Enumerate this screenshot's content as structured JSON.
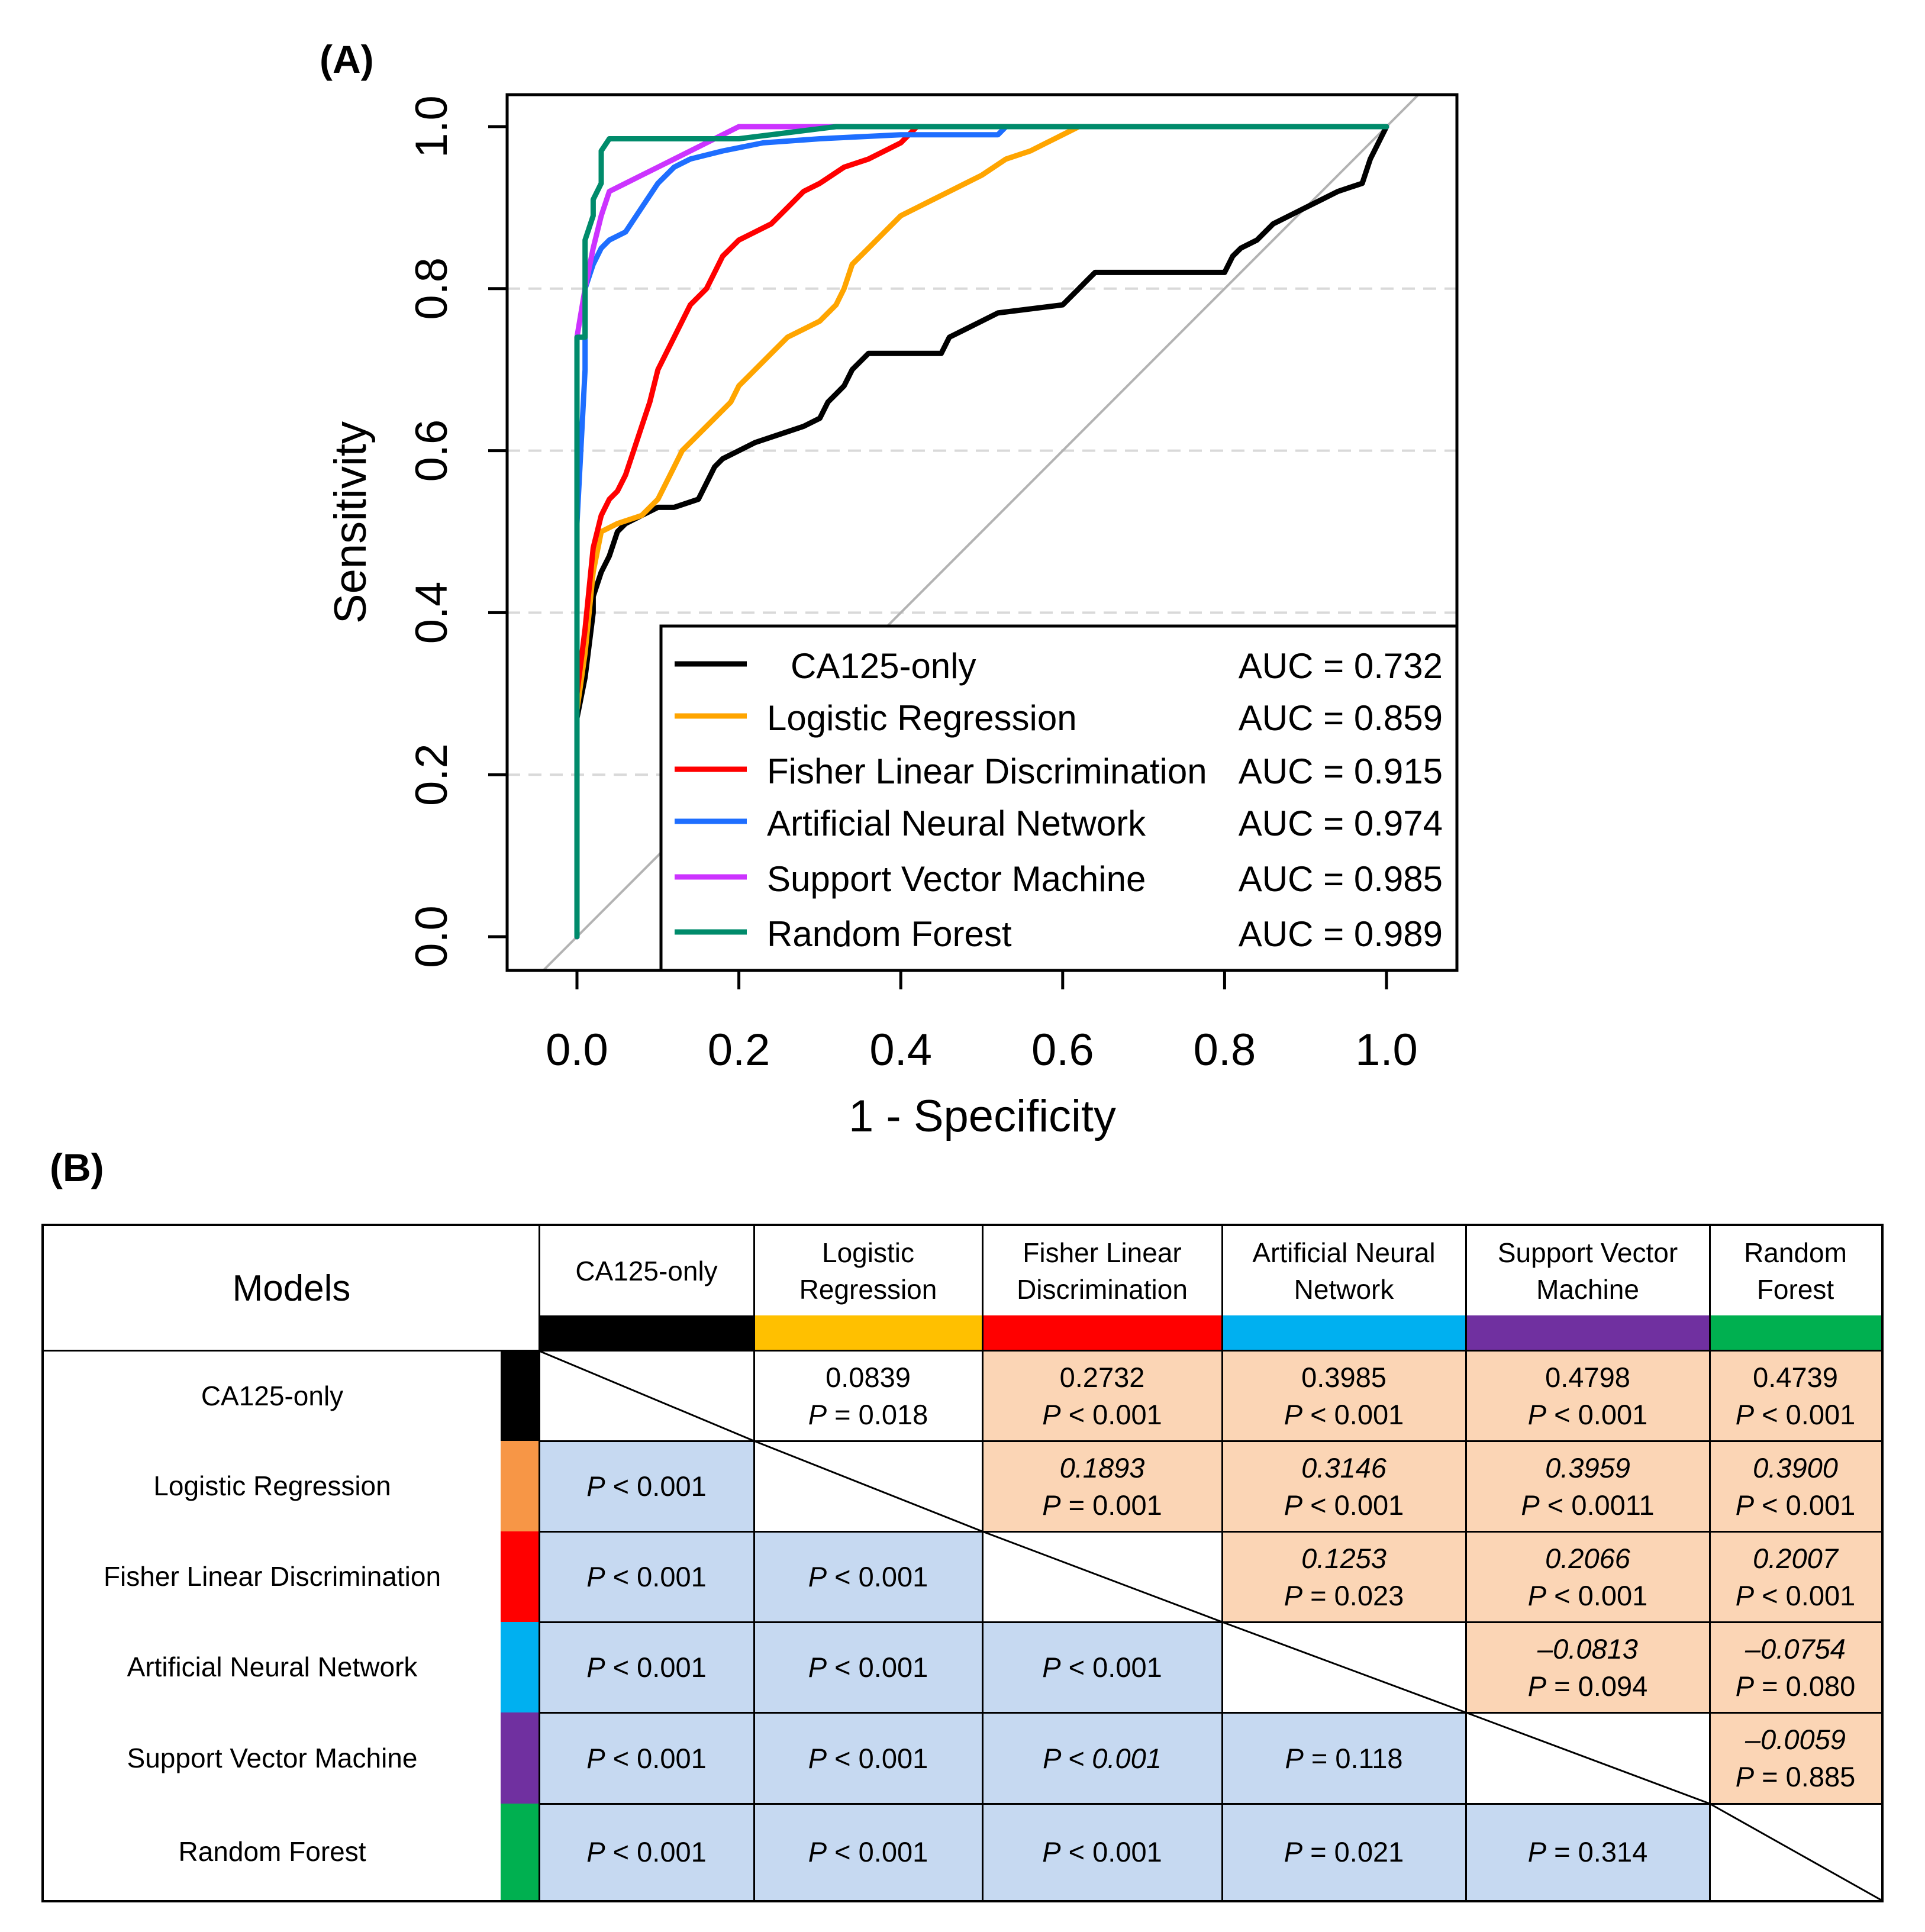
{
  "panel_a_label": "(A)",
  "panel_b_label": "(B)",
  "chart_data": {
    "type": "line",
    "title": "",
    "xlabel": "1 - Specificity",
    "ylabel": "Sensitivity",
    "xlim": [
      0,
      1
    ],
    "ylim": [
      0,
      1
    ],
    "xticks": [
      "0.0",
      "0.2",
      "0.4",
      "0.6",
      "0.8",
      "1.0"
    ],
    "yticks": [
      "0.0",
      "0.2",
      "0.4",
      "0.6",
      "0.8",
      "1.0"
    ],
    "grid": "horizontal dashed",
    "legend_position": "bottom-right",
    "reference_line": "diagonal",
    "series": [
      {
        "name": "CA125-only",
        "auc_label": "AUC = 0.732",
        "color": "#000000",
        "x": [
          0.0,
          0.0,
          0.01,
          0.02,
          0.02,
          0.03,
          0.04,
          0.05,
          0.06,
          0.08,
          0.1,
          0.12,
          0.15,
          0.16,
          0.17,
          0.18,
          0.2,
          0.22,
          0.25,
          0.28,
          0.3,
          0.31,
          0.32,
          0.33,
          0.34,
          0.35,
          0.36,
          0.38,
          0.45,
          0.46,
          0.48,
          0.5,
          0.52,
          0.6,
          0.62,
          0.63,
          0.64,
          0.8,
          0.81,
          0.82,
          0.84,
          0.86,
          0.88,
          0.9,
          0.92,
          0.94,
          0.97,
          0.98,
          0.99,
          1.0
        ],
        "y": [
          0.0,
          0.27,
          0.32,
          0.4,
          0.42,
          0.45,
          0.47,
          0.5,
          0.51,
          0.52,
          0.53,
          0.53,
          0.54,
          0.56,
          0.58,
          0.59,
          0.6,
          0.61,
          0.62,
          0.63,
          0.64,
          0.66,
          0.67,
          0.68,
          0.7,
          0.71,
          0.72,
          0.72,
          0.72,
          0.74,
          0.75,
          0.76,
          0.77,
          0.78,
          0.8,
          0.81,
          0.82,
          0.82,
          0.84,
          0.85,
          0.86,
          0.88,
          0.89,
          0.9,
          0.91,
          0.92,
          0.93,
          0.96,
          0.98,
          1.0
        ]
      },
      {
        "name": "Logistic Regression",
        "auc_label": "AUC = 0.859",
        "color": "#FFA500",
        "x": [
          0.0,
          0.0,
          0.01,
          0.02,
          0.03,
          0.05,
          0.08,
          0.1,
          0.11,
          0.12,
          0.13,
          0.15,
          0.17,
          0.19,
          0.2,
          0.22,
          0.24,
          0.26,
          0.28,
          0.3,
          0.32,
          0.33,
          0.34,
          0.36,
          0.38,
          0.4,
          0.42,
          0.44,
          0.46,
          0.48,
          0.5,
          0.53,
          0.56,
          0.58,
          0.6,
          0.62,
          1.0
        ],
        "y": [
          0.0,
          0.28,
          0.35,
          0.45,
          0.5,
          0.51,
          0.52,
          0.54,
          0.56,
          0.58,
          0.6,
          0.62,
          0.64,
          0.66,
          0.68,
          0.7,
          0.72,
          0.74,
          0.75,
          0.76,
          0.78,
          0.8,
          0.83,
          0.85,
          0.87,
          0.89,
          0.9,
          0.91,
          0.92,
          0.93,
          0.94,
          0.96,
          0.97,
          0.98,
          0.99,
          1.0,
          1.0
        ]
      },
      {
        "name": "Fisher Linear Discrimination",
        "auc_label": "AUC = 0.915",
        "color": "#FF0000",
        "x": [
          0.0,
          0.0,
          0.01,
          0.02,
          0.03,
          0.04,
          0.05,
          0.06,
          0.07,
          0.08,
          0.09,
          0.1,
          0.11,
          0.12,
          0.13,
          0.14,
          0.15,
          0.16,
          0.17,
          0.18,
          0.19,
          0.2,
          0.22,
          0.24,
          0.26,
          0.28,
          0.3,
          0.33,
          0.36,
          0.38,
          0.4,
          0.42,
          1.0
        ],
        "y": [
          0.0,
          0.3,
          0.38,
          0.48,
          0.52,
          0.54,
          0.55,
          0.57,
          0.6,
          0.63,
          0.66,
          0.7,
          0.72,
          0.74,
          0.76,
          0.78,
          0.79,
          0.8,
          0.82,
          0.84,
          0.85,
          0.86,
          0.87,
          0.88,
          0.9,
          0.92,
          0.93,
          0.95,
          0.96,
          0.97,
          0.98,
          1.0,
          1.0
        ]
      },
      {
        "name": "Artificial Neural Network",
        "auc_label": "AUC = 0.974",
        "color": "#1E6EFF",
        "x": [
          0.0,
          0.0,
          0.01,
          0.01,
          0.02,
          0.03,
          0.04,
          0.06,
          0.08,
          0.1,
          0.12,
          0.14,
          0.18,
          0.23,
          0.3,
          0.4,
          0.52,
          0.53,
          1.0
        ],
        "y": [
          0.0,
          0.51,
          0.7,
          0.8,
          0.83,
          0.85,
          0.86,
          0.87,
          0.9,
          0.93,
          0.95,
          0.96,
          0.97,
          0.98,
          0.985,
          0.99,
          0.99,
          1.0,
          1.0
        ]
      },
      {
        "name": "Support Vector Machine",
        "auc_label": "AUC = 0.985",
        "color": "#CC33FF",
        "x": [
          0.0,
          0.0,
          0.01,
          0.02,
          0.03,
          0.04,
          0.06,
          0.08,
          0.1,
          0.12,
          0.14,
          0.16,
          0.18,
          0.2,
          1.0
        ],
        "y": [
          0.0,
          0.74,
          0.8,
          0.85,
          0.89,
          0.92,
          0.93,
          0.94,
          0.95,
          0.96,
          0.97,
          0.98,
          0.99,
          1.0,
          1.0
        ]
      },
      {
        "name": "Random Forest",
        "auc_label": "AUC = 0.989",
        "color": "#008B6B",
        "x": [
          0.0,
          0.0,
          0.01,
          0.01,
          0.02,
          0.02,
          0.03,
          0.03,
          0.04,
          0.1,
          0.2,
          0.32,
          1.0
        ],
        "y": [
          0.0,
          0.74,
          0.74,
          0.86,
          0.89,
          0.91,
          0.93,
          0.97,
          0.985,
          0.985,
          0.985,
          1.0,
          1.0
        ]
      }
    ]
  },
  "matrix": {
    "corner_label": "Models",
    "columns": [
      {
        "label": "CA125-only",
        "color": "#000000"
      },
      {
        "label": "Logistic\nRegression",
        "color": "#FFC000"
      },
      {
        "label": "Fisher Linear\nDiscrimination",
        "color": "#FF0000"
      },
      {
        "label": "Artificial Neural\nNetwork",
        "color": "#00B0F0"
      },
      {
        "label": "Support Vector\nMachine",
        "color": "#7030A0"
      },
      {
        "label": "Random\nForest",
        "color": "#00B050"
      }
    ],
    "rows": [
      {
        "label": "CA125-only",
        "color": "#000000"
      },
      {
        "label": "Logistic Regression",
        "color": "#F79646"
      },
      {
        "label": "Fisher Linear Discrimination",
        "color": "#FF0000"
      },
      {
        "label": "Artificial Neural Network",
        "color": "#00B0F0"
      },
      {
        "label": "Support Vector Machine",
        "color": "#7030A0"
      },
      {
        "label": "Random Forest",
        "color": "#00B050"
      }
    ],
    "upper_fill": "#FBD5B5",
    "lower_fill": "#C6D9F1",
    "upper": [
      {
        "row": 0,
        "col": 1,
        "coef": "0.0839",
        "p": "= 0.018",
        "fill": "none",
        "italic": false
      },
      {
        "row": 0,
        "col": 2,
        "coef": "0.2732",
        "p": "< 0.001",
        "fill": "upper",
        "italic": false
      },
      {
        "row": 0,
        "col": 3,
        "coef": "0.3985",
        "p": "< 0.001",
        "fill": "upper",
        "italic": false
      },
      {
        "row": 0,
        "col": 4,
        "coef": "0.4798",
        "p": "< 0.001",
        "fill": "upper",
        "italic": false
      },
      {
        "row": 0,
        "col": 5,
        "coef": "0.4739",
        "p": "< 0.001",
        "fill": "upper",
        "italic": false
      },
      {
        "row": 1,
        "col": 2,
        "coef": "0.1893",
        "p": "= 0.001",
        "fill": "upper",
        "italic": true
      },
      {
        "row": 1,
        "col": 3,
        "coef": "0.3146",
        "p": "< 0.001",
        "fill": "upper",
        "italic": true
      },
      {
        "row": 1,
        "col": 4,
        "coef": "0.3959",
        "p": "< 0.0011",
        "fill": "upper",
        "italic": true
      },
      {
        "row": 1,
        "col": 5,
        "coef": "0.3900",
        "p": "< 0.001",
        "fill": "upper",
        "italic": true
      },
      {
        "row": 2,
        "col": 3,
        "coef": "0.1253",
        "p": "= 0.023",
        "fill": "upper",
        "italic": true
      },
      {
        "row": 2,
        "col": 4,
        "coef": "0.2066",
        "p": "< 0.001",
        "fill": "upper",
        "italic": true
      },
      {
        "row": 2,
        "col": 5,
        "coef": "0.2007",
        "p": "< 0.001",
        "fill": "upper",
        "italic": true
      },
      {
        "row": 3,
        "col": 4,
        "coef": "–0.0813",
        "p": "= 0.094",
        "fill": "upper",
        "italic": true
      },
      {
        "row": 3,
        "col": 5,
        "coef": "–0.0754",
        "p": "= 0.080",
        "fill": "upper",
        "italic": true
      },
      {
        "row": 4,
        "col": 5,
        "coef": "–0.0059",
        "p": "= 0.885",
        "fill": "upper",
        "italic": true
      }
    ],
    "lower": [
      {
        "row": 1,
        "col": 0,
        "p": "< 0.001",
        "italic_value": false
      },
      {
        "row": 2,
        "col": 0,
        "p": "< 0.001",
        "italic_value": false
      },
      {
        "row": 2,
        "col": 1,
        "p": "< 0.001",
        "italic_value": false
      },
      {
        "row": 3,
        "col": 0,
        "p": "< 0.001",
        "italic_value": false
      },
      {
        "row": 3,
        "col": 1,
        "p": "< 0.001",
        "italic_value": false
      },
      {
        "row": 3,
        "col": 2,
        "p": "< 0.001",
        "italic_value": false
      },
      {
        "row": 4,
        "col": 0,
        "p": "< 0.001",
        "italic_value": false
      },
      {
        "row": 4,
        "col": 1,
        "p": "< 0.001",
        "italic_value": false
      },
      {
        "row": 4,
        "col": 2,
        "p": "< 0.001",
        "italic_value": true
      },
      {
        "row": 4,
        "col": 3,
        "p": "= 0.118",
        "italic_value": false
      },
      {
        "row": 5,
        "col": 0,
        "p": "< 0.001",
        "italic_value": false
      },
      {
        "row": 5,
        "col": 1,
        "p": "< 0.001",
        "italic_value": false
      },
      {
        "row": 5,
        "col": 2,
        "p": "< 0.001",
        "italic_value": false
      },
      {
        "row": 5,
        "col": 3,
        "p": "= 0.021",
        "italic_value": false
      },
      {
        "row": 5,
        "col": 4,
        "p": "= 0.314",
        "italic_value": false
      }
    ],
    "p_symbol": "P"
  }
}
